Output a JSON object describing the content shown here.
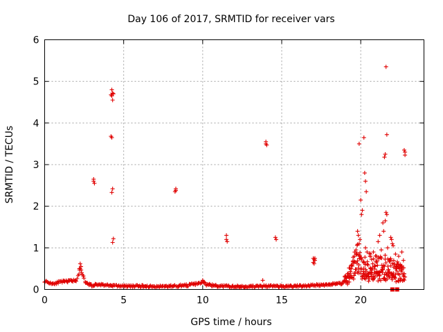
{
  "chart_data": {
    "type": "scatter",
    "title": "Day 106 of 2017, SRMTID for receiver vars",
    "xlabel": "GPS time / hours",
    "ylabel": "SRMTID / TECUs",
    "xlim": [
      0,
      24
    ],
    "ylim": [
      0,
      6
    ],
    "xticks": [
      "0",
      "5",
      "10",
      "15",
      "20"
    ],
    "yticks": [
      "0",
      "1",
      "2",
      "3",
      "4",
      "5",
      "6"
    ],
    "grid": true,
    "marker": "plus",
    "color": "#e00000",
    "background_band": [
      [
        0.0,
        0.2
      ],
      [
        0.5,
        0.14
      ],
      [
        1.0,
        0.18
      ],
      [
        1.5,
        0.2
      ],
      [
        2.0,
        0.22
      ],
      [
        2.25,
        0.5
      ],
      [
        2.4,
        0.35
      ],
      [
        2.6,
        0.15
      ],
      [
        3.0,
        0.1
      ],
      [
        3.5,
        0.12
      ],
      [
        4.0,
        0.1
      ],
      [
        5.0,
        0.08
      ],
      [
        6.0,
        0.08
      ],
      [
        7.0,
        0.07
      ],
      [
        8.0,
        0.08
      ],
      [
        9.0,
        0.1
      ],
      [
        9.9,
        0.15
      ],
      [
        10.0,
        0.2
      ],
      [
        10.2,
        0.12
      ],
      [
        11.0,
        0.08
      ],
      [
        12.0,
        0.07
      ],
      [
        13.0,
        0.07
      ],
      [
        14.0,
        0.08
      ],
      [
        15.0,
        0.07
      ],
      [
        16.0,
        0.08
      ],
      [
        17.0,
        0.1
      ],
      [
        18.0,
        0.12
      ],
      [
        18.8,
        0.15
      ],
      [
        19.2,
        0.3
      ],
      [
        19.5,
        0.5
      ],
      [
        19.8,
        0.7
      ],
      [
        20.0,
        0.6
      ],
      [
        20.5,
        0.55
      ],
      [
        21.0,
        0.5
      ],
      [
        21.5,
        0.55
      ],
      [
        22.0,
        0.45
      ],
      [
        22.5,
        0.4
      ],
      [
        22.8,
        0.35
      ]
    ],
    "points": [
      [
        3.1,
        2.65
      ],
      [
        3.1,
        2.6
      ],
      [
        3.15,
        2.55
      ],
      [
        4.25,
        4.8
      ],
      [
        4.3,
        4.72
      ],
      [
        4.2,
        4.68
      ],
      [
        4.35,
        4.7
      ],
      [
        4.25,
        4.65
      ],
      [
        4.3,
        4.55
      ],
      [
        4.2,
        3.68
      ],
      [
        4.25,
        3.65
      ],
      [
        4.3,
        2.42
      ],
      [
        4.25,
        2.33
      ],
      [
        4.35,
        1.22
      ],
      [
        4.3,
        1.13
      ],
      [
        8.3,
        2.42
      ],
      [
        8.3,
        2.38
      ],
      [
        8.25,
        2.35
      ],
      [
        11.5,
        1.3
      ],
      [
        11.5,
        1.2
      ],
      [
        11.55,
        1.15
      ],
      [
        14.0,
        3.55
      ],
      [
        14.0,
        3.5
      ],
      [
        14.05,
        3.47
      ],
      [
        14.6,
        1.25
      ],
      [
        14.65,
        1.2
      ],
      [
        17.0,
        0.75
      ],
      [
        17.05,
        0.72
      ],
      [
        17.1,
        0.7
      ],
      [
        17.0,
        0.65
      ],
      [
        17.05,
        0.62
      ],
      [
        17.1,
        0.75
      ],
      [
        19.9,
        3.5
      ],
      [
        20.2,
        3.65
      ],
      [
        20.0,
        2.15
      ],
      [
        20.1,
        1.9
      ],
      [
        20.05,
        1.8
      ],
      [
        20.25,
        2.8
      ],
      [
        20.3,
        2.6
      ],
      [
        20.35,
        2.35
      ],
      [
        21.6,
        5.35
      ],
      [
        21.65,
        3.72
      ],
      [
        21.55,
        3.25
      ],
      [
        21.5,
        3.18
      ],
      [
        22.75,
        3.35
      ],
      [
        22.8,
        3.3
      ],
      [
        22.8,
        3.23
      ],
      [
        21.6,
        1.85
      ],
      [
        21.65,
        1.8
      ],
      [
        21.4,
        1.6
      ],
      [
        21.55,
        1.65
      ],
      [
        21.2,
        1.3
      ],
      [
        21.1,
        1.15
      ],
      [
        21.45,
        1.4
      ],
      [
        21.9,
        1.25
      ],
      [
        22.0,
        1.1
      ],
      [
        21.95,
        1.2
      ],
      [
        22.05,
        1.05
      ],
      [
        19.8,
        1.4
      ],
      [
        19.85,
        1.3
      ],
      [
        19.9,
        1.1
      ],
      [
        19.95,
        1.2
      ],
      [
        20.3,
        1.0
      ],
      [
        20.4,
        0.9
      ],
      [
        20.6,
        0.85
      ],
      [
        20.8,
        0.9
      ],
      [
        21.0,
        0.8
      ],
      [
        21.3,
        0.95
      ],
      [
        21.7,
        1.0
      ],
      [
        22.2,
        0.85
      ],
      [
        22.4,
        0.8
      ],
      [
        22.6,
        0.9
      ],
      [
        22.7,
        0.7
      ],
      [
        22.5,
        0.6
      ],
      [
        22.3,
        0.55
      ],
      [
        20.1,
        0.3
      ],
      [
        20.3,
        0.25
      ],
      [
        20.5,
        0.2
      ],
      [
        20.7,
        0.4
      ],
      [
        20.9,
        0.3
      ],
      [
        21.2,
        0.35
      ],
      [
        21.5,
        0.25
      ],
      [
        21.8,
        0.3
      ],
      [
        22.4,
        0.2
      ],
      [
        22.8,
        0.3
      ],
      [
        19.6,
        0.8
      ],
      [
        19.7,
        0.9
      ],
      [
        20.0,
        0.75
      ],
      [
        20.2,
        0.65
      ],
      [
        2.25,
        0.62
      ],
      [
        2.3,
        0.55
      ],
      [
        2.2,
        0.5
      ],
      [
        10.0,
        0.22
      ],
      [
        13.8,
        0.22
      ]
    ],
    "square_points": [
      [
        22.0,
        0.0
      ],
      [
        22.3,
        0.0
      ]
    ]
  }
}
